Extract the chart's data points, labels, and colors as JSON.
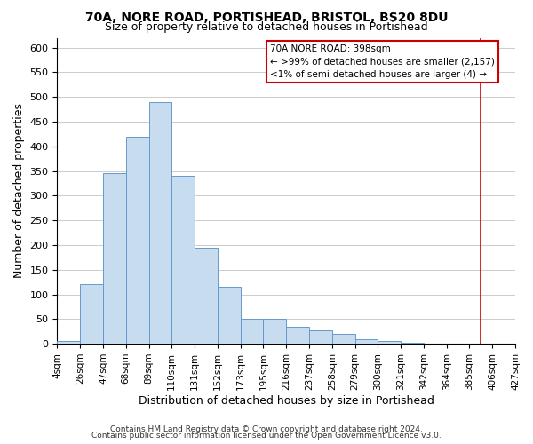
{
  "title": "70A, NORE ROAD, PORTISHEAD, BRISTOL, BS20 8DU",
  "subtitle": "Size of property relative to detached houses in Portishead",
  "xlabel": "Distribution of detached houses by size in Portishead",
  "ylabel": "Number of detached properties",
  "footer_lines": [
    "Contains HM Land Registry data © Crown copyright and database right 2024.",
    "Contains public sector information licensed under the Open Government Licence v3.0."
  ],
  "bin_labels": [
    "4sqm",
    "26sqm",
    "47sqm",
    "68sqm",
    "89sqm",
    "110sqm",
    "131sqm",
    "152sqm",
    "173sqm",
    "195sqm",
    "216sqm",
    "237sqm",
    "258sqm",
    "279sqm",
    "300sqm",
    "321sqm",
    "342sqm",
    "364sqm",
    "385sqm",
    "406sqm",
    "427sqm"
  ],
  "bar_values": [
    5,
    120,
    345,
    420,
    490,
    340,
    195,
    115,
    50,
    50,
    35,
    28,
    20,
    10,
    5,
    2,
    1,
    1,
    1,
    0
  ],
  "bar_color": "#c8dcf0",
  "bar_edge_color": "#6699cc",
  "ylim": [
    0,
    620
  ],
  "yticks": [
    0,
    50,
    100,
    150,
    200,
    250,
    300,
    350,
    400,
    450,
    500,
    550,
    600
  ],
  "vline_color": "#cc0000",
  "vline_x": 18.5,
  "annotation_box_text_lines": [
    "70A NORE ROAD: 398sqm",
    "← >99% of detached houses are smaller (2,157)",
    "<1% of semi-detached houses are larger (4) →"
  ],
  "grid_color": "#cccccc",
  "background_color": "#ffffff",
  "title_fontsize": 10,
  "subtitle_fontsize": 9,
  "ylabel_fontsize": 9,
  "xlabel_fontsize": 9,
  "tick_fontsize": 8,
  "xtick_fontsize": 7.5,
  "footer_fontsize": 6.5
}
